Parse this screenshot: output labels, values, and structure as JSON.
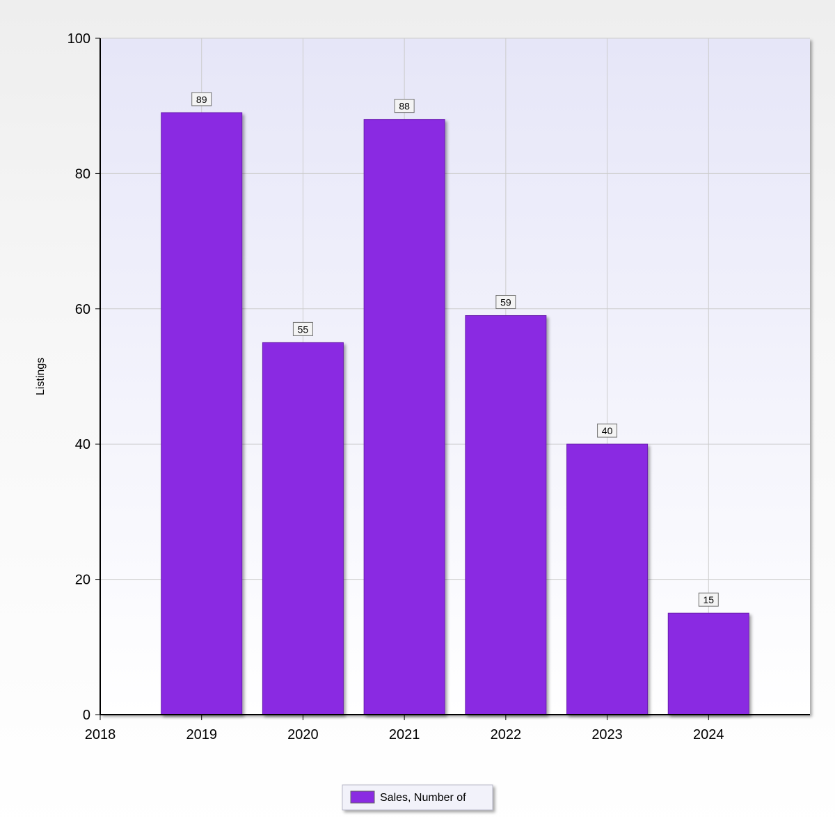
{
  "chart_data": {
    "type": "bar",
    "title": "",
    "xlabel": "",
    "ylabel": "Listings",
    "x_ticks": [
      "2018",
      "2019",
      "2020",
      "2021",
      "2022",
      "2023",
      "2024"
    ],
    "categories": [
      "2019",
      "2020",
      "2021",
      "2022",
      "2023",
      "2024"
    ],
    "series": [
      {
        "name": "Sales, Number of",
        "values": [
          89,
          55,
          88,
          59,
          40,
          15
        ],
        "color": "#8a2be2"
      }
    ],
    "ylim": [
      0,
      100
    ],
    "y_ticks": [
      0,
      20,
      40,
      60,
      80,
      100
    ],
    "grid": true,
    "data_labels": true,
    "legend_position": "bottom-center"
  }
}
